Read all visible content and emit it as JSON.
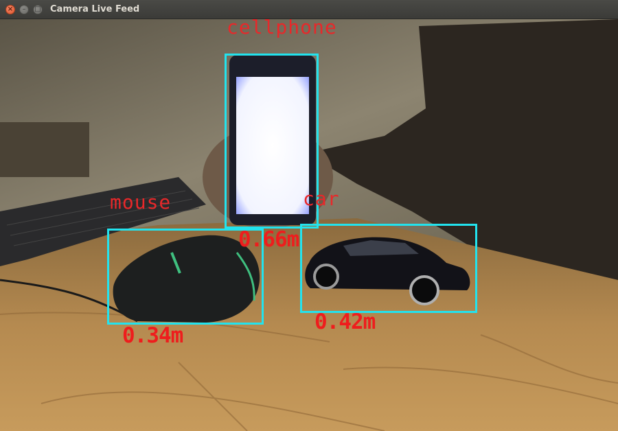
{
  "window": {
    "title": "Camera Live Feed",
    "close_glyph": "×",
    "minimize_glyph": "–",
    "maximize_glyph": "□"
  },
  "detections": [
    {
      "class": "cellphone",
      "distance": "0.66m"
    },
    {
      "class": "mouse",
      "distance": "0.34m"
    },
    {
      "class": "car",
      "distance": "0.42m"
    }
  ],
  "colors": {
    "box": "#22e3ee",
    "label": "#e8282a"
  }
}
